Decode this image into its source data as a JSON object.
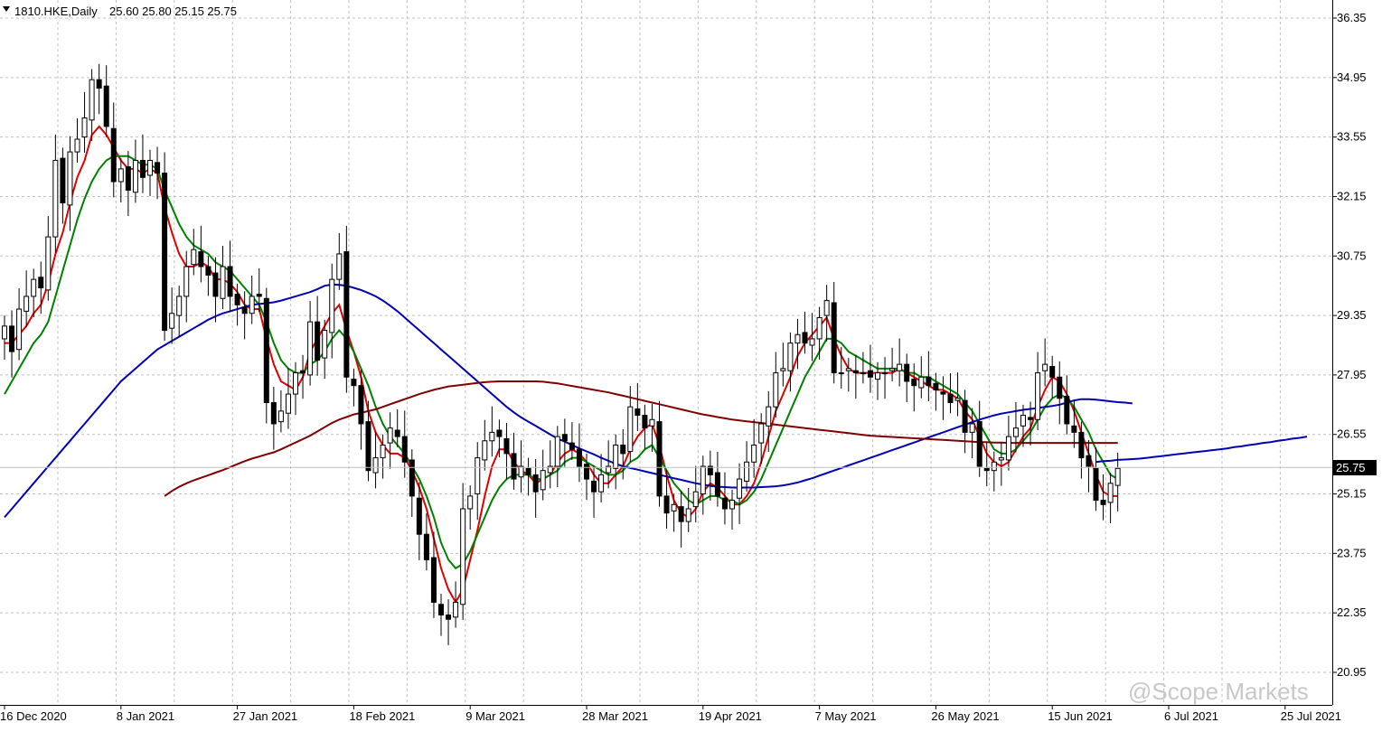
{
  "header": {
    "symbol": "1810.HKE,Daily",
    "ohlc": "25.60 25.80 25.15 25.75"
  },
  "watermark": "@Scope Markets",
  "colors": {
    "grid": "#c0c0c0",
    "candle": "#000000",
    "ma_red": "#e00000",
    "ma_green": "#008000",
    "ma_blue": "#0000b4",
    "ma_maroon": "#800000"
  },
  "chart_data": {
    "type": "candlestick",
    "symbol": "1810.HKE",
    "timeframe": "Daily",
    "last_price": 25.75,
    "ylim": [
      20.4,
      36.75
    ],
    "y_ticks": [
      36.35,
      34.95,
      33.55,
      32.15,
      30.75,
      29.35,
      27.95,
      26.55,
      25.15,
      23.75,
      22.35,
      20.95
    ],
    "x_labels": [
      {
        "label": "16 Dec 2020",
        "bar": 0
      },
      {
        "label": "8 Jan 2021",
        "bar": 16
      },
      {
        "label": "27 Jan 2021",
        "bar": 32
      },
      {
        "label": "18 Feb 2021",
        "bar": 48
      },
      {
        "label": "9 Mar 2021",
        "bar": 64
      },
      {
        "label": "28 Mar 2021",
        "bar": 80
      },
      {
        "label": "19 Apr 2021",
        "bar": 96
      },
      {
        "label": "7 May 2021",
        "bar": 112
      },
      {
        "label": "26 May 2021",
        "bar": 128
      },
      {
        "label": "15 Jun 2021",
        "bar": 144
      },
      {
        "label": "6 Jul 2021",
        "bar": 160
      },
      {
        "label": "25 Jul 2021",
        "bar": 176
      }
    ],
    "closes": [
      29.1,
      28.5,
      29.5,
      29.8,
      30.2,
      30.0,
      31.2,
      33.0,
      32.0,
      33.2,
      33.5,
      34.0,
      34.9,
      34.7,
      33.8,
      32.5,
      32.8,
      32.3,
      33.0,
      32.6,
      33.0,
      32.7,
      29.0,
      29.4,
      29.8,
      30.5,
      30.9,
      30.5,
      30.3,
      29.8,
      30.5,
      29.8,
      29.6,
      29.4,
      29.8,
      29.8,
      27.3,
      26.8,
      27.1,
      27.5,
      28.0,
      28.0,
      29.2,
      28.3,
      29.0,
      30.2,
      30.8,
      27.9,
      27.7,
      26.8,
      25.7,
      26.0,
      26.3,
      26.7,
      26.5,
      25.9,
      25.1,
      24.2,
      23.6,
      22.6,
      22.3,
      22.2,
      22.6,
      24.8,
      25.1,
      26.0,
      26.4,
      26.6,
      26.5,
      26.1,
      25.5,
      25.8,
      25.6,
      25.2,
      25.7,
      25.8,
      26.5,
      26.4,
      26.2,
      25.8,
      25.5,
      25.2,
      25.6,
      25.8,
      26.3,
      26.1,
      27.2,
      27.0,
      26.7,
      26.9,
      25.1,
      24.7,
      24.9,
      24.5,
      24.8,
      25.2,
      25.8,
      25.6,
      25.1,
      24.8,
      25.0,
      25.5,
      25.9,
      26.3,
      26.8,
      27.2,
      28.0,
      28.1,
      28.7,
      28.9,
      28.7,
      28.8,
      29.3,
      29.7,
      28.0,
      28.0,
      28.1,
      28.0,
      28.0,
      27.9,
      28.0,
      28.0,
      28.1,
      28.2,
      27.8,
      27.7,
      27.9,
      27.7,
      27.6,
      27.5,
      27.3,
      27.4,
      26.6,
      26.8,
      25.8,
      25.7,
      25.9,
      26.0,
      26.5,
      26.7,
      27.0,
      26.9,
      28.0,
      28.2,
      27.9,
      27.4,
      26.8,
      26.6,
      26.0,
      25.8,
      25.0,
      24.9,
      25.4,
      25.75
    ],
    "series": [
      {
        "name": "",
        "color": "#e00000",
        "values": [
          28.7,
          28.7,
          28.9,
          29.1,
          29.4,
          29.6,
          30.1,
          30.8,
          31.3,
          32.0,
          32.6,
          33.0,
          33.6,
          33.8,
          33.6,
          33.3,
          33.0,
          32.8,
          32.8,
          32.7,
          32.8,
          32.7,
          31.9,
          31.3,
          30.8,
          30.5,
          30.5,
          30.6,
          30.5,
          30.2,
          30.2,
          30.1,
          29.9,
          29.6,
          29.5,
          29.5,
          28.8,
          28.2,
          27.8,
          27.7,
          27.6,
          27.9,
          28.5,
          28.8,
          29.1,
          29.4,
          29.6,
          29.0,
          28.5,
          27.9,
          27.1,
          26.6,
          26.3,
          26.1,
          26.1,
          26.0,
          25.7,
          25.3,
          24.8,
          24.1,
          23.4,
          22.9,
          22.6,
          22.9,
          23.6,
          24.3,
          25.1,
          25.8,
          26.2,
          26.2,
          25.9,
          25.7,
          25.6,
          25.4,
          25.5,
          25.6,
          25.9,
          26.1,
          26.2,
          26.1,
          25.9,
          25.6,
          25.4,
          25.4,
          25.6,
          25.8,
          26.2,
          26.5,
          26.7,
          26.8,
          26.3,
          25.6,
          25.0,
          24.7,
          24.6,
          24.8,
          25.2,
          25.4,
          25.3,
          25.1,
          24.9,
          24.9,
          25.1,
          25.4,
          25.9,
          26.5,
          27.1,
          27.5,
          27.9,
          28.4,
          28.7,
          28.9,
          29.1,
          29.3,
          28.8,
          28.4,
          28.1,
          28.0,
          28.0,
          28.0,
          28.0,
          28.0,
          28.0,
          28.1,
          28.0,
          27.9,
          27.8,
          27.7,
          27.6,
          27.6,
          27.5,
          27.4,
          27.1,
          26.9,
          26.5,
          26.1,
          25.9,
          25.8,
          25.9,
          26.2,
          26.5,
          26.7,
          27.2,
          27.6,
          27.9,
          27.8,
          27.5,
          27.1,
          26.6,
          26.1,
          25.6,
          25.2,
          25.1,
          25.1
        ]
      },
      {
        "name": "",
        "color": "#008000",
        "values": [
          27.5,
          27.8,
          28.1,
          28.4,
          28.7,
          28.9,
          29.2,
          29.8,
          30.4,
          31.0,
          31.6,
          32.1,
          32.5,
          32.8,
          33.0,
          33.1,
          33.1,
          33.1,
          33.0,
          32.9,
          32.9,
          32.8,
          32.3,
          31.9,
          31.5,
          31.2,
          31.0,
          30.9,
          30.8,
          30.6,
          30.5,
          30.4,
          30.2,
          30.0,
          29.8,
          29.6,
          29.2,
          28.7,
          28.3,
          28.1,
          28.0,
          28.0,
          28.2,
          28.3,
          28.5,
          28.8,
          29.0,
          28.8,
          28.5,
          28.1,
          27.7,
          27.2,
          26.8,
          26.5,
          26.3,
          26.1,
          25.8,
          25.5,
          25.1,
          24.6,
          24.0,
          23.6,
          23.4,
          23.5,
          23.8,
          24.2,
          24.6,
          25.0,
          25.3,
          25.5,
          25.6,
          25.6,
          25.6,
          25.5,
          25.5,
          25.6,
          25.7,
          25.9,
          26.0,
          26.0,
          25.9,
          25.8,
          25.7,
          25.6,
          25.6,
          25.7,
          25.9,
          26.0,
          26.2,
          26.3,
          26.0,
          25.7,
          25.4,
          25.2,
          25.0,
          24.9,
          25.0,
          25.1,
          25.1,
          25.0,
          25.0,
          24.9,
          25.0,
          25.2,
          25.5,
          25.9,
          26.3,
          26.7,
          27.1,
          27.5,
          27.9,
          28.2,
          28.5,
          28.8,
          28.8,
          28.7,
          28.5,
          28.4,
          28.3,
          28.2,
          28.1,
          28.1,
          28.1,
          28.1,
          28.0,
          28.0,
          27.9,
          27.9,
          27.8,
          27.7,
          27.6,
          27.5,
          27.3,
          27.1,
          26.8,
          26.5,
          26.2,
          26.1,
          26.1,
          26.2,
          26.4,
          26.6,
          26.9,
          27.2,
          27.4,
          27.5,
          27.4,
          27.2,
          26.9,
          26.6,
          26.2,
          25.9,
          25.6,
          25.5
        ]
      },
      {
        "name": "",
        "color": "#0000b4",
        "start_bar": 0,
        "values": [
          24.6,
          24.8,
          25.0,
          25.2,
          25.4,
          25.6,
          25.8,
          26.0,
          26.2,
          26.4,
          26.6,
          26.8,
          27.0,
          27.2,
          27.4,
          27.6,
          27.8,
          27.95,
          28.1,
          28.25,
          28.4,
          28.55,
          28.65,
          28.75,
          28.85,
          28.95,
          29.05,
          29.15,
          29.25,
          29.33,
          29.4,
          29.45,
          29.5,
          29.55,
          29.6,
          29.62,
          29.64,
          29.66,
          29.7,
          29.75,
          29.8,
          29.85,
          29.9,
          29.97,
          30.05,
          30.08,
          30.07,
          30.05,
          30.0,
          29.95,
          29.88,
          29.8,
          29.7,
          29.58,
          29.45,
          29.3,
          29.15,
          29.0,
          28.85,
          28.7,
          28.55,
          28.4,
          28.25,
          28.1,
          27.95,
          27.8,
          27.65,
          27.5,
          27.35,
          27.2,
          27.07,
          26.95,
          26.85,
          26.75,
          26.65,
          26.55,
          26.45,
          26.38,
          26.3,
          26.22,
          26.15,
          26.08,
          26.0,
          25.93,
          25.86,
          25.8,
          25.76,
          25.72,
          25.68,
          25.64,
          25.6,
          25.56,
          25.52,
          25.48,
          25.44,
          25.4,
          25.37,
          25.34,
          25.32,
          25.31,
          25.3,
          25.3,
          25.3,
          25.3,
          25.31,
          25.32,
          25.33,
          25.35,
          25.38,
          25.42,
          25.47,
          25.52,
          25.58,
          25.64,
          25.7,
          25.76,
          25.82,
          25.88,
          25.94,
          26.0,
          26.06,
          26.12,
          26.18,
          26.24,
          26.3,
          26.36,
          26.42,
          26.48,
          26.54,
          26.6,
          26.66,
          26.72,
          26.78,
          26.84,
          26.9,
          26.95,
          27.0,
          27.04,
          27.07,
          27.1,
          27.13,
          27.15,
          27.17,
          27.2,
          27.22,
          27.25,
          27.3,
          27.35,
          27.38,
          27.38,
          27.37,
          27.35,
          27.33,
          27.31,
          27.3,
          27.28
        ]
      },
      {
        "name": "",
        "color": "#0000b4",
        "start_bar": 150,
        "values": [
          25.9,
          25.92,
          25.93,
          25.95,
          25.96,
          25.97,
          25.98,
          26.0,
          26.02,
          26.04,
          26.06,
          26.08,
          26.1,
          26.12,
          26.14,
          26.16,
          26.18,
          26.2,
          26.22,
          26.25,
          26.27,
          26.3,
          26.32,
          26.35,
          26.37,
          26.4,
          26.42,
          26.45,
          26.47,
          26.5
        ]
      },
      {
        "name": "",
        "color": "#800000",
        "start_bar": 22,
        "values": [
          25.1,
          25.22,
          25.32,
          25.4,
          25.47,
          25.53,
          25.59,
          25.65,
          25.71,
          25.78,
          25.85,
          25.92,
          25.98,
          26.03,
          26.08,
          26.13,
          26.2,
          26.28,
          26.36,
          26.44,
          26.52,
          26.62,
          26.72,
          26.82,
          26.9,
          26.96,
          27.02,
          27.06,
          27.1,
          27.14,
          27.2,
          27.26,
          27.32,
          27.38,
          27.44,
          27.5,
          27.55,
          27.6,
          27.64,
          27.68,
          27.7,
          27.72,
          27.74,
          27.76,
          27.78,
          27.79,
          27.8,
          27.8,
          27.8,
          27.8,
          27.8,
          27.8,
          27.79,
          27.77,
          27.75,
          27.72,
          27.69,
          27.66,
          27.63,
          27.6,
          27.57,
          27.54,
          27.5,
          27.46,
          27.42,
          27.38,
          27.34,
          27.3,
          27.26,
          27.22,
          27.18,
          27.14,
          27.1,
          27.06,
          27.02,
          26.99,
          26.96,
          26.93,
          26.9,
          26.88,
          26.86,
          26.84,
          26.82,
          26.8,
          26.78,
          26.76,
          26.74,
          26.72,
          26.7,
          26.68,
          26.66,
          26.64,
          26.62,
          26.6,
          26.58,
          26.56,
          26.54,
          26.52,
          26.51,
          26.5,
          26.49,
          26.48,
          26.47,
          26.46,
          26.45,
          26.44,
          26.43,
          26.42,
          26.41,
          26.4,
          26.39,
          26.38,
          26.37,
          26.37,
          26.36,
          26.36,
          26.35,
          26.35,
          26.35,
          26.35,
          26.35,
          26.35,
          26.35,
          26.35,
          26.35,
          26.35,
          26.35,
          26.35,
          26.35,
          26.35,
          26.35,
          26.35
        ]
      }
    ]
  }
}
